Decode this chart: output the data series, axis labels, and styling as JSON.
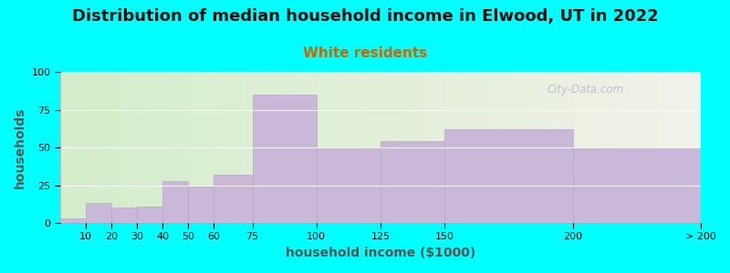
{
  "title": "Distribution of median household income in Elwood, UT in 2022",
  "subtitle": "White residents",
  "xlabel": "household income ($1000)",
  "ylabel": "households",
  "background_color": "#00FFFF",
  "plot_bg_left": "#d4edca",
  "plot_bg_right": "#f2f2ea",
  "bar_color": "#c9b8d8",
  "bar_edge_color": "#b8a8cc",
  "bin_edges": [
    0,
    10,
    20,
    30,
    40,
    50,
    60,
    75,
    100,
    125,
    150,
    200,
    250
  ],
  "bin_labels": [
    "10",
    "20",
    "30",
    "40",
    "50",
    "60",
    "75",
    "100",
    "125",
    "150",
    "200",
    "> 200"
  ],
  "values": [
    3,
    13,
    10,
    11,
    28,
    24,
    32,
    85,
    50,
    54,
    62,
    50
  ],
  "ylim": [
    0,
    100
  ],
  "yticks": [
    0,
    25,
    50,
    75,
    100
  ],
  "title_fontsize": 13,
  "subtitle_fontsize": 11,
  "subtitle_color": "#cc6600",
  "axis_label_fontsize": 10,
  "tick_fontsize": 8,
  "watermark": "City-Data.com"
}
